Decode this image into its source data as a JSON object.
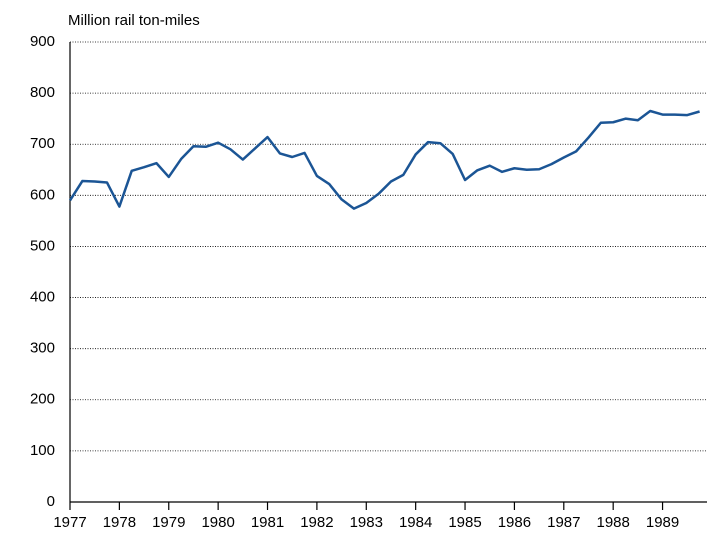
{
  "chart_data": {
    "type": "line",
    "y_label": "Million rail ton-miles",
    "x": [
      1977,
      1977.25,
      1977.5,
      1977.75,
      1978,
      1978.25,
      1978.5,
      1978.75,
      1979,
      1979.25,
      1979.5,
      1979.75,
      1980,
      1980.25,
      1980.5,
      1980.75,
      1981,
      1981.25,
      1981.5,
      1981.75,
      1982,
      1982.25,
      1982.5,
      1982.75,
      1983,
      1983.25,
      1983.5,
      1983.75,
      1984,
      1984.25,
      1984.5,
      1984.75,
      1985,
      1985.25,
      1985.5,
      1985.75,
      1986,
      1986.25,
      1986.5,
      1986.75,
      1987,
      1987.25,
      1987.5,
      1987.75,
      1988,
      1988.25,
      1988.5,
      1988.75,
      1989,
      1989.25,
      1989.5,
      1989.75
    ],
    "series": [
      {
        "name": "Rail ton-miles",
        "color": "#1b5595",
        "values": [
          590,
          628,
          627,
          625,
          578,
          648,
          655,
          663,
          636,
          671,
          696,
          695,
          703,
          690,
          670,
          692,
          714,
          682,
          675,
          683,
          638,
          622,
          592,
          574,
          585,
          603,
          627,
          640,
          680,
          704,
          702,
          681,
          630,
          649,
          658,
          646,
          653,
          650,
          651,
          661,
          674,
          686,
          713,
          742,
          743,
          750,
          747,
          765,
          758,
          758,
          757,
          764
        ]
      }
    ],
    "xlim": [
      1977,
      1989.9
    ],
    "xticks": [
      1977,
      1978,
      1979,
      1980,
      1981,
      1982,
      1983,
      1984,
      1985,
      1986,
      1987,
      1988,
      1989
    ],
    "ylim": [
      0,
      900
    ],
    "yticks": [
      0,
      100,
      200,
      300,
      400,
      500,
      600,
      700,
      800,
      900
    ],
    "grid": true
  }
}
